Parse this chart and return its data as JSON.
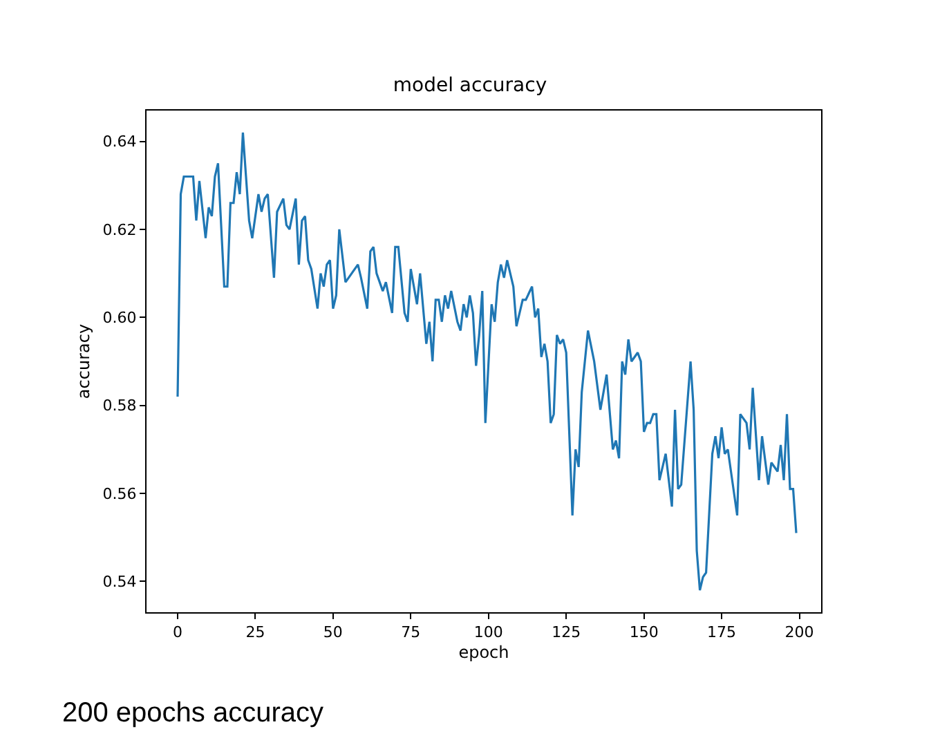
{
  "chart_data": {
    "type": "line",
    "title": "model accuracy",
    "xlabel": "epoch",
    "ylabel": "accuracy",
    "annotations": [
      "200 epochs accuracy"
    ],
    "x": [
      0,
      1,
      2,
      5,
      6,
      7,
      9,
      10,
      11,
      12,
      13,
      15,
      16,
      17,
      18,
      19,
      20,
      21,
      23,
      24,
      26,
      27,
      28,
      29,
      31,
      32,
      34,
      35,
      36,
      38,
      39,
      40,
      41,
      42,
      43,
      45,
      46,
      47,
      48,
      49,
      50,
      51,
      52,
      54,
      56,
      58,
      59,
      61,
      62,
      63,
      64,
      66,
      67,
      69,
      70,
      71,
      73,
      74,
      75,
      77,
      78,
      80,
      81,
      82,
      83,
      84,
      85,
      86,
      87,
      88,
      90,
      91,
      92,
      93,
      94,
      95,
      96,
      97,
      98,
      99,
      101,
      102,
      103,
      104,
      105,
      106,
      108,
      109,
      111,
      112,
      114,
      115,
      116,
      117,
      118,
      119,
      120,
      121,
      122,
      123,
      124,
      125,
      127,
      128,
      129,
      130,
      132,
      134,
      136,
      138,
      140,
      141,
      142,
      143,
      144,
      145,
      146,
      148,
      149,
      150,
      151,
      152,
      153,
      154,
      155,
      157,
      159,
      160,
      161,
      162,
      165,
      166,
      167,
      168,
      169,
      170,
      172,
      173,
      174,
      175,
      176,
      177,
      180,
      181,
      183,
      184,
      185,
      187,
      188,
      190,
      191,
      193,
      194,
      195,
      196,
      197,
      198,
      199
    ],
    "series": [
      {
        "color": "#1f77b4",
        "values": [
          0.582,
          0.628,
          0.632,
          0.632,
          0.622,
          0.631,
          0.618,
          0.625,
          0.623,
          0.632,
          0.635,
          0.607,
          0.607,
          0.626,
          0.626,
          0.633,
          0.628,
          0.642,
          0.622,
          0.618,
          0.628,
          0.624,
          0.627,
          0.628,
          0.609,
          0.624,
          0.627,
          0.621,
          0.62,
          0.627,
          0.612,
          0.622,
          0.623,
          0.613,
          0.611,
          0.602,
          0.61,
          0.607,
          0.612,
          0.613,
          0.602,
          0.605,
          0.62,
          0.608,
          0.61,
          0.612,
          0.609,
          0.602,
          0.615,
          0.616,
          0.61,
          0.606,
          0.608,
          0.601,
          0.616,
          0.616,
          0.601,
          0.599,
          0.611,
          0.603,
          0.61,
          0.594,
          0.599,
          0.59,
          0.604,
          0.604,
          0.599,
          0.605,
          0.602,
          0.606,
          0.599,
          0.597,
          0.603,
          0.6,
          0.605,
          0.601,
          0.589,
          0.596,
          0.606,
          0.576,
          0.603,
          0.599,
          0.608,
          0.612,
          0.609,
          0.613,
          0.607,
          0.598,
          0.604,
          0.604,
          0.607,
          0.6,
          0.602,
          0.591,
          0.594,
          0.59,
          0.576,
          0.578,
          0.596,
          0.594,
          0.595,
          0.592,
          0.555,
          0.57,
          0.566,
          0.583,
          0.597,
          0.59,
          0.579,
          0.587,
          0.57,
          0.572,
          0.568,
          0.59,
          0.587,
          0.595,
          0.59,
          0.592,
          0.59,
          0.574,
          0.576,
          0.576,
          0.578,
          0.578,
          0.563,
          0.569,
          0.557,
          0.579,
          0.561,
          0.562,
          0.59,
          0.579,
          0.547,
          0.538,
          0.541,
          0.542,
          0.569,
          0.573,
          0.568,
          0.575,
          0.569,
          0.57,
          0.555,
          0.578,
          0.576,
          0.57,
          0.584,
          0.563,
          0.573,
          0.562,
          0.567,
          0.565,
          0.571,
          0.563,
          0.578,
          0.561,
          0.561,
          0.551
        ]
      }
    ],
    "xlim": [
      -10,
      207
    ],
    "xticks": [
      0,
      25,
      50,
      75,
      100,
      125,
      150,
      175,
      200
    ],
    "ylim": [
      0.533,
      0.647
    ],
    "yticks": [
      {
        "value": 0.54,
        "label": "0.54"
      },
      {
        "value": 0.56,
        "label": "0.56"
      },
      {
        "value": 0.58,
        "label": "0.58"
      },
      {
        "value": 0.6,
        "label": "0.60"
      },
      {
        "value": 0.62,
        "label": "0.62"
      },
      {
        "value": 0.64,
        "label": "0.64"
      }
    ],
    "marker": "none",
    "line_style": "solid"
  }
}
